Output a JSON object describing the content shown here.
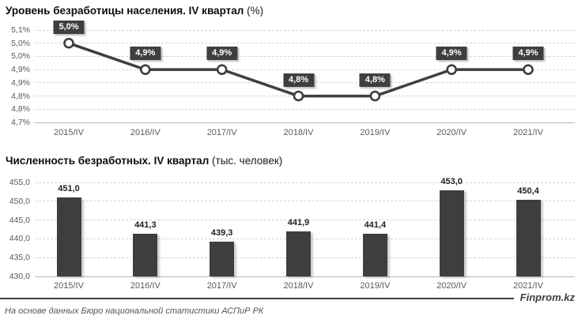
{
  "line": {
    "title_bold": "Уровень безработицы населения. IV квартал",
    "title_suffix": "(%)"
  },
  "bar": {
    "title_bold": "Численность безработных. IV квартал",
    "title_suffix": "(тыс. человек)"
  },
  "footer": {
    "source": "На основе данных Бюро национальной статистики АСПиР РК",
    "brand": "Finprom.kz"
  },
  "colors": {
    "accent_dark": "#3f3f3f",
    "grid": "#d4d4d4",
    "axis": "#b9b9b9",
    "tick_text": "#595959",
    "bar_label_text": "#1f1f1f",
    "data_label_bg": "#3f3f3f",
    "data_label_text": "#ffffff"
  },
  "chart_data": [
    {
      "type": "line",
      "title": "Уровень безработицы населения. IV квартал (%)",
      "categories": [
        "2015/IV",
        "2016/IV",
        "2017/IV",
        "2018/IV",
        "2019/IV",
        "2020/IV",
        "2021/IV"
      ],
      "values": [
        5.0,
        4.9,
        4.9,
        4.8,
        4.8,
        4.9,
        4.9
      ],
      "data_labels": [
        "5,0%",
        "4,9%",
        "4,9%",
        "4,8%",
        "4,8%",
        "4,9%",
        "4,9%"
      ],
      "y_ticks": [
        "5,1%",
        "5,0%",
        "5,0%",
        "4,9%",
        "4,9%",
        "4,8%",
        "4,8%",
        "4,7%"
      ],
      "ylim": [
        4.7,
        5.05
      ],
      "grid_step": 0.05,
      "grid": "dashed-horizontal",
      "legend": "none",
      "marker": "open-circle",
      "line_color": "#3f3f3f"
    },
    {
      "type": "bar",
      "title": "Численность безработных. IV квартал (тыс. человек)",
      "categories": [
        "2015/IV",
        "2016/IV",
        "2017/IV",
        "2018/IV",
        "2019/IV",
        "2020/IV",
        "2021/IV"
      ],
      "values": [
        451.0,
        441.3,
        439.3,
        441.9,
        441.4,
        453.0,
        450.4
      ],
      "data_labels": [
        "451,0",
        "441,3",
        "439,3",
        "441,9",
        "441,4",
        "453,0",
        "450,4"
      ],
      "y_ticks": [
        "455,0",
        "450,0",
        "445,0",
        "440,0",
        "435,0",
        "430,0"
      ],
      "ylim": [
        430.0,
        455.0
      ],
      "grid_step": 5,
      "grid": "dashed-horizontal",
      "legend": "none",
      "bar_color": "#3e3e3e"
    }
  ]
}
